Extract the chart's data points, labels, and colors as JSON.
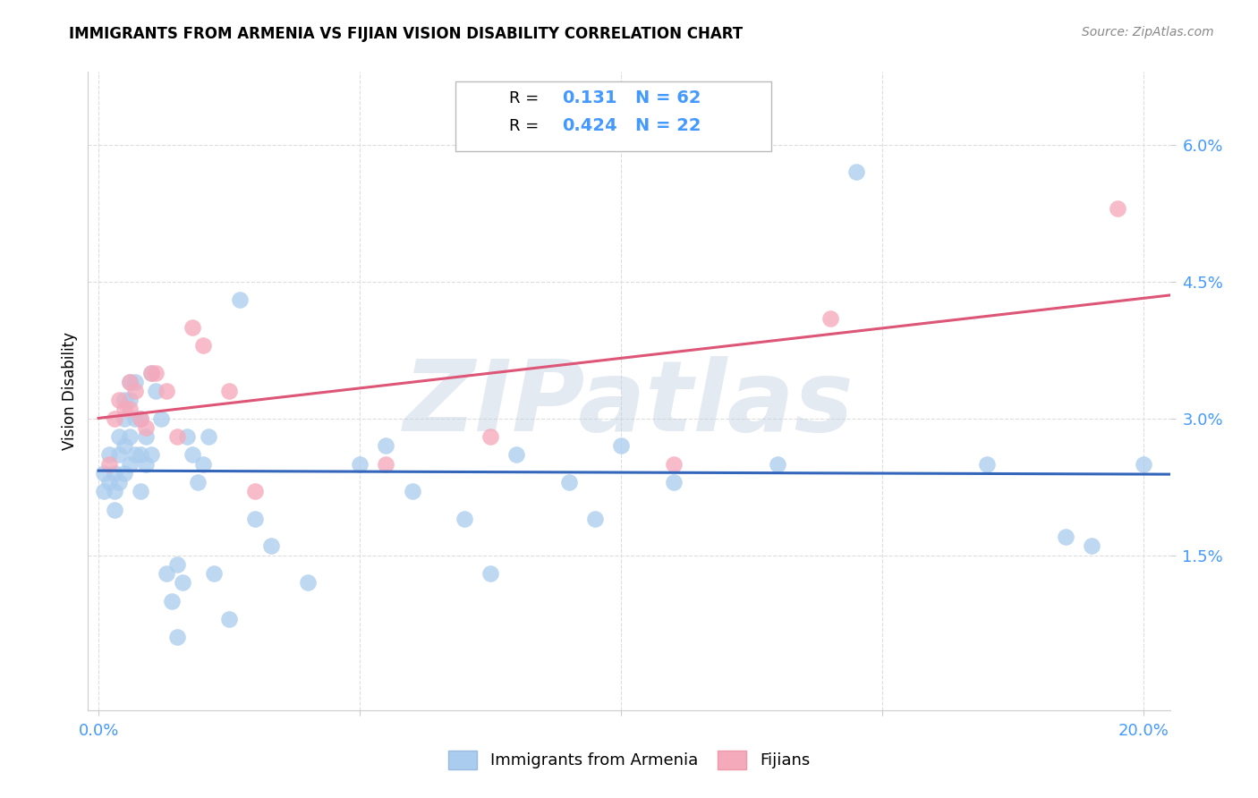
{
  "title": "IMMIGRANTS FROM ARMENIA VS FIJIAN VISION DISABILITY CORRELATION CHART",
  "source": "Source: ZipAtlas.com",
  "ylabel": "Vision Disability",
  "xlim": [
    -0.002,
    0.205
  ],
  "ylim": [
    -0.002,
    0.068
  ],
  "xticks": [
    0.0,
    0.05,
    0.1,
    0.15,
    0.2
  ],
  "xtick_labels": [
    "0.0%",
    "",
    "",
    "",
    "20.0%"
  ],
  "yticks": [
    0.015,
    0.03,
    0.045,
    0.06
  ],
  "ytick_labels": [
    "1.5%",
    "3.0%",
    "4.5%",
    "6.0%"
  ],
  "watermark": "ZIPatlas",
  "blue_color": "#AACCEE",
  "pink_color": "#F5AABC",
  "blue_line_color": "#3366BB",
  "pink_line_color": "#DD5577",
  "background_color": "#FFFFFF",
  "grid_color": "#DDDDDD",
  "tick_color": "#4499FF",
  "blue_x": [
    0.001,
    0.001,
    0.002,
    0.002,
    0.003,
    0.003,
    0.003,
    0.004,
    0.004,
    0.004,
    0.005,
    0.005,
    0.005,
    0.005,
    0.006,
    0.006,
    0.006,
    0.006,
    0.007,
    0.007,
    0.007,
    0.008,
    0.008,
    0.008,
    0.009,
    0.009,
    0.01,
    0.01,
    0.011,
    0.012,
    0.013,
    0.014,
    0.015,
    0.015,
    0.016,
    0.017,
    0.018,
    0.019,
    0.02,
    0.021,
    0.022,
    0.025,
    0.027,
    0.03,
    0.033,
    0.04,
    0.05,
    0.055,
    0.06,
    0.07,
    0.075,
    0.08,
    0.09,
    0.095,
    0.1,
    0.11,
    0.13,
    0.145,
    0.17,
    0.185,
    0.19,
    0.2
  ],
  "blue_y": [
    0.024,
    0.022,
    0.026,
    0.023,
    0.024,
    0.022,
    0.02,
    0.028,
    0.026,
    0.023,
    0.032,
    0.03,
    0.027,
    0.024,
    0.034,
    0.032,
    0.028,
    0.025,
    0.034,
    0.03,
    0.026,
    0.03,
    0.026,
    0.022,
    0.028,
    0.025,
    0.035,
    0.026,
    0.033,
    0.03,
    0.013,
    0.01,
    0.014,
    0.006,
    0.012,
    0.028,
    0.026,
    0.023,
    0.025,
    0.028,
    0.013,
    0.008,
    0.043,
    0.019,
    0.016,
    0.012,
    0.025,
    0.027,
    0.022,
    0.019,
    0.013,
    0.026,
    0.023,
    0.019,
    0.027,
    0.023,
    0.025,
    0.057,
    0.025,
    0.017,
    0.016,
    0.025
  ],
  "pink_x": [
    0.002,
    0.003,
    0.004,
    0.005,
    0.006,
    0.006,
    0.007,
    0.008,
    0.009,
    0.01,
    0.011,
    0.013,
    0.015,
    0.018,
    0.02,
    0.025,
    0.03,
    0.055,
    0.075,
    0.11,
    0.14,
    0.195
  ],
  "pink_y": [
    0.025,
    0.03,
    0.032,
    0.031,
    0.031,
    0.034,
    0.033,
    0.03,
    0.029,
    0.035,
    0.035,
    0.033,
    0.028,
    0.04,
    0.038,
    0.033,
    0.022,
    0.025,
    0.028,
    0.025,
    0.041,
    0.053
  ],
  "legend_r1_val": "0.131",
  "legend_n1_val": "N = 62",
  "legend_r2_val": "0.424",
  "legend_n2_val": "N = 22"
}
